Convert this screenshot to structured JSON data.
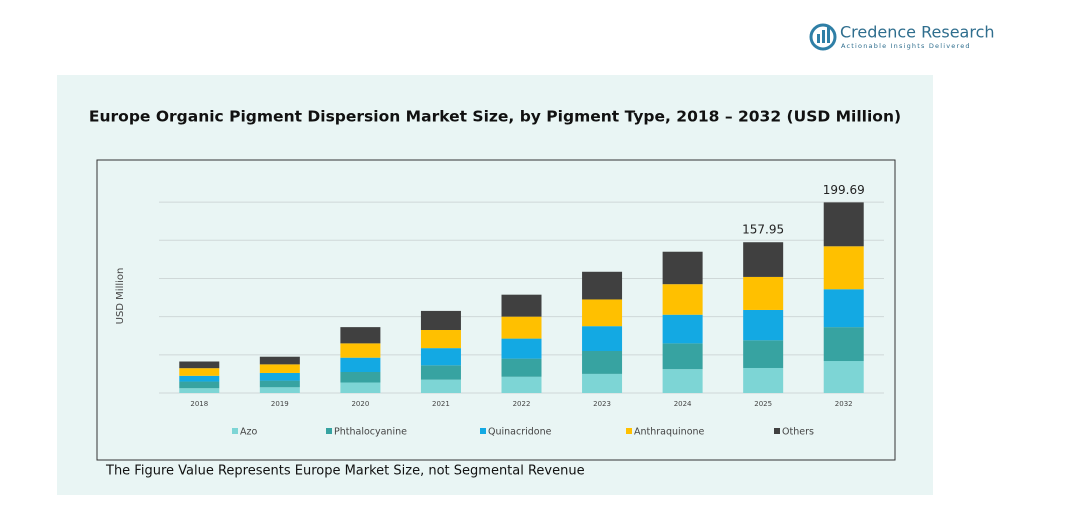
{
  "logo": {
    "name": "Credence Research",
    "tagline": "Actionable Insights Delivered"
  },
  "chart_data": {
    "type": "stacked-bar",
    "title": "Europe Organic Pigment Dispersion Market Size, by Pigment Type, 2018 – 2032 (USD Million)",
    "y_label": "USD Million",
    "categories": [
      "2018",
      "2019",
      "2020",
      "2021",
      "2022",
      "2023",
      "2024",
      "2025",
      "2032"
    ],
    "series": [
      {
        "name": "Azo",
        "color": "#7dd5d5",
        "values": [
          5,
          6,
          11,
          14,
          17,
          20,
          25,
          26.2,
          33.5
        ]
      },
      {
        "name": "Phthalocyanine",
        "color": "#37a3a1",
        "values": [
          7,
          7,
          11,
          15,
          19,
          24,
          27,
          29,
          35.5
        ]
      },
      {
        "name": "Quinacridone",
        "color": "#13a9e3",
        "values": [
          6,
          8,
          15,
          18,
          21,
          26,
          30,
          31.8,
          39.7
        ]
      },
      {
        "name": "Anthraquinone",
        "color": "#ffc000",
        "values": [
          8,
          9,
          15,
          19,
          23,
          28,
          32,
          34.6,
          45
        ]
      },
      {
        "name": "Others",
        "color": "#404040",
        "values": [
          7,
          8,
          17,
          20,
          23,
          29,
          34,
          36.35,
          45.99
        ]
      }
    ],
    "totals": [
      null,
      null,
      null,
      null,
      null,
      null,
      null,
      157.95,
      199.69
    ],
    "ylim": [
      0,
      220
    ],
    "yticks": [
      0,
      40,
      80,
      120,
      160,
      200
    ],
    "grid": true,
    "note": "The Figure Value Represents Europe Market Size, not Segmental Revenue"
  }
}
